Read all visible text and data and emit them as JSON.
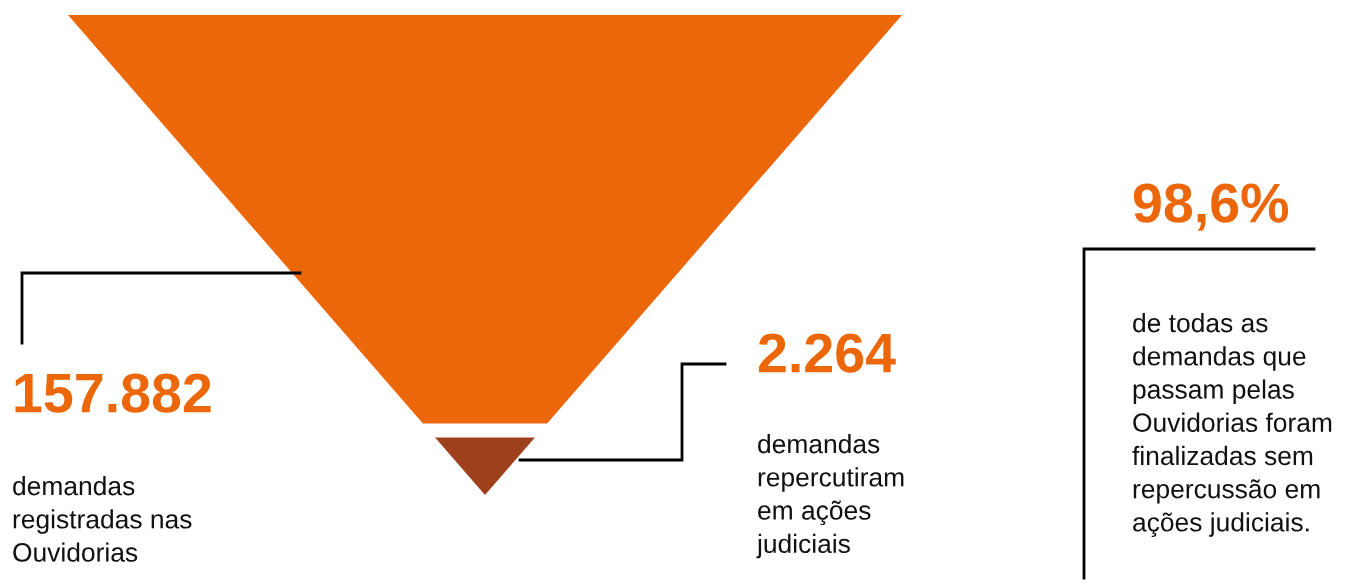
{
  "chart_data": {
    "type": "other",
    "categories": [
      null,
      null
    ],
    "values": [
      157882,
      2264
    ],
    "value_labels": [
      "157.882",
      "2.264"
    ],
    "colors": [
      "#eb670a",
      "#9d401b"
    ],
    "annotations": [
      "demandas\nregistradas nas\nOuvidorias",
      "demandas\nrepercutiram\nem ações\njudiciais",
      "98,6%",
      "de todas as\ndemandas que\npassam pelas\nOuvidorias foram\nfinalizadas sem\nrepercussão em\nações judiciais."
    ]
  }
}
